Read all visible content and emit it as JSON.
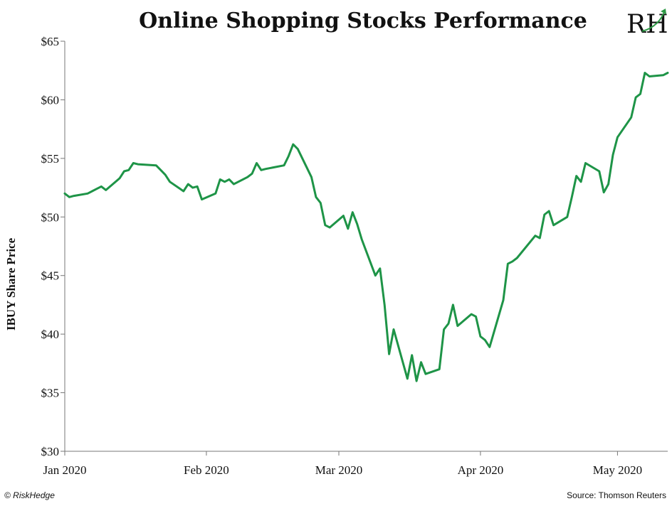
{
  "header": {
    "title": "Online Shopping Stocks Performance"
  },
  "logo": {
    "text": "RH",
    "color": "#2e9a46"
  },
  "footer": {
    "copyright": "© RiskHedge",
    "source": "Source: Thomson Reuters"
  },
  "chart_data": {
    "type": "line",
    "title": "Online Shopping Stocks Performance",
    "xlabel": "",
    "ylabel": "IBUY Share Price",
    "ylim": [
      30,
      65
    ],
    "yticks": [
      30,
      35,
      40,
      45,
      50,
      55,
      60,
      65
    ],
    "ytick_labels": [
      "$30",
      "$35",
      "$40",
      "$45",
      "$50",
      "$55",
      "$60",
      "$65"
    ],
    "xticks": [
      "2020-01-01",
      "2020-02-01",
      "2020-03-01",
      "2020-04-01",
      "2020-05-01"
    ],
    "xtick_labels": [
      "Jan 2020",
      "Feb 2020",
      "Mar 2020",
      "Apr 2020",
      "May 2020"
    ],
    "xlim": [
      "2020-01-01",
      "2020-05-12"
    ],
    "grid": false,
    "line_color": "#1e9447",
    "series": [
      {
        "x": [
          "2020-01-01",
          "2020-01-02",
          "2020-01-03",
          "2020-01-06",
          "2020-01-07",
          "2020-01-08",
          "2020-01-09",
          "2020-01-10",
          "2020-01-13",
          "2020-01-14",
          "2020-01-15",
          "2020-01-16",
          "2020-01-17",
          "2020-01-21",
          "2020-01-22",
          "2020-01-23",
          "2020-01-24",
          "2020-01-27",
          "2020-01-28",
          "2020-01-29",
          "2020-01-30",
          "2020-01-31",
          "2020-02-03",
          "2020-02-04",
          "2020-02-05",
          "2020-02-06",
          "2020-02-07",
          "2020-02-10",
          "2020-02-11",
          "2020-02-12",
          "2020-02-13",
          "2020-02-14",
          "2020-02-18",
          "2020-02-19",
          "2020-02-20",
          "2020-02-21",
          "2020-02-24",
          "2020-02-25",
          "2020-02-26",
          "2020-02-27",
          "2020-02-28",
          "2020-03-02",
          "2020-03-03",
          "2020-03-04",
          "2020-03-05",
          "2020-03-06",
          "2020-03-09",
          "2020-03-10",
          "2020-03-11",
          "2020-03-12",
          "2020-03-13",
          "2020-03-16",
          "2020-03-17",
          "2020-03-18",
          "2020-03-19",
          "2020-03-20",
          "2020-03-23",
          "2020-03-24",
          "2020-03-25",
          "2020-03-26",
          "2020-03-27",
          "2020-03-30",
          "2020-03-31",
          "2020-04-01",
          "2020-04-02",
          "2020-04-03",
          "2020-04-06",
          "2020-04-07",
          "2020-04-08",
          "2020-04-09",
          "2020-04-13",
          "2020-04-14",
          "2020-04-15",
          "2020-04-16",
          "2020-04-17",
          "2020-04-20",
          "2020-04-21",
          "2020-04-22",
          "2020-04-23",
          "2020-04-24",
          "2020-04-27",
          "2020-04-28",
          "2020-04-29",
          "2020-04-30",
          "2020-05-01",
          "2020-05-04",
          "2020-05-05",
          "2020-05-06",
          "2020-05-07",
          "2020-05-08",
          "2020-05-11",
          "2020-05-12"
        ],
        "y": [
          52.0,
          51.7,
          51.8,
          52.0,
          52.2,
          52.4,
          52.6,
          52.3,
          53.3,
          53.9,
          54.0,
          54.6,
          54.5,
          54.4,
          54.0,
          53.6,
          53.0,
          52.2,
          52.8,
          52.5,
          52.6,
          51.5,
          52.0,
          53.2,
          53.0,
          53.2,
          52.8,
          53.4,
          53.7,
          54.6,
          54.0,
          54.1,
          54.4,
          55.2,
          56.2,
          55.8,
          53.4,
          51.7,
          51.2,
          49.3,
          49.1,
          50.1,
          49.0,
          50.4,
          49.4,
          48.1,
          45.0,
          45.6,
          42.5,
          38.3,
          40.4,
          36.2,
          38.2,
          36.0,
          37.6,
          36.6,
          37.0,
          40.4,
          40.9,
          42.5,
          40.7,
          41.7,
          41.5,
          39.8,
          39.5,
          38.9,
          42.9,
          46.0,
          46.2,
          46.5,
          48.4,
          48.2,
          50.2,
          50.5,
          49.3,
          50.0,
          51.7,
          53.5,
          53.0,
          54.6,
          53.9,
          52.1,
          52.8,
          55.3,
          56.8,
          58.5,
          60.2,
          60.5,
          62.3,
          62.0,
          62.1,
          62.3
        ]
      }
    ]
  }
}
